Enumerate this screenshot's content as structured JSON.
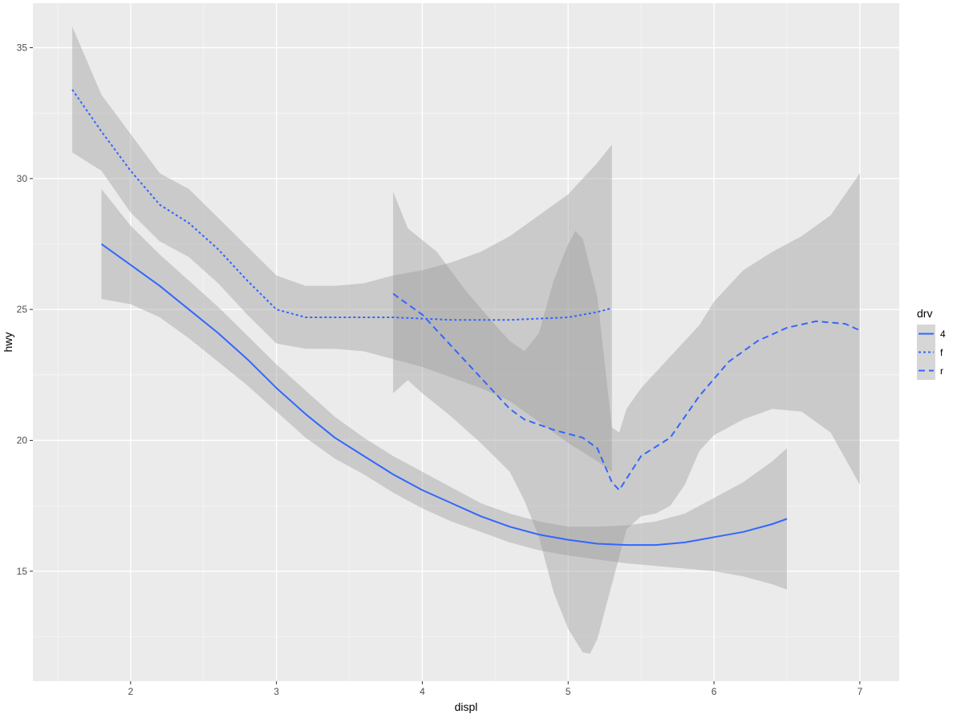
{
  "chart_data": {
    "type": "line",
    "xlabel": "displ",
    "ylabel": "hwy",
    "xlim": [
      1.33,
      7.27
    ],
    "ylim": [
      10.8,
      36.7
    ],
    "x_ticks": [
      2,
      3,
      4,
      5,
      6,
      7
    ],
    "x_tick_labels": [
      "2",
      "3",
      "4",
      "5",
      "6",
      "7"
    ],
    "y_ticks": [
      15,
      20,
      25,
      30,
      35
    ],
    "y_tick_labels": [
      "15",
      "20",
      "25",
      "30",
      "35"
    ],
    "grid": true,
    "legend": {
      "title": "drv",
      "position": "right"
    },
    "colors": {
      "panel": "#ebebeb",
      "grid_major": "#ffffff",
      "grid_minor": "#f5f5f5",
      "ribbon": "#999999",
      "line": "#3366ff"
    },
    "series": [
      {
        "name": "4",
        "linetype": "solid",
        "points": [
          [
            1.8,
            27.5
          ],
          [
            2.0,
            26.7
          ],
          [
            2.2,
            25.9
          ],
          [
            2.4,
            25.0
          ],
          [
            2.6,
            24.1
          ],
          [
            2.8,
            23.1
          ],
          [
            3.0,
            22.0
          ],
          [
            3.2,
            21.0
          ],
          [
            3.4,
            20.1
          ],
          [
            3.6,
            19.4
          ],
          [
            3.8,
            18.7
          ],
          [
            4.0,
            18.1
          ],
          [
            4.2,
            17.6
          ],
          [
            4.4,
            17.1
          ],
          [
            4.6,
            16.7
          ],
          [
            4.8,
            16.4
          ],
          [
            5.0,
            16.2
          ],
          [
            5.2,
            16.05
          ],
          [
            5.4,
            16.0
          ],
          [
            5.6,
            16.0
          ],
          [
            5.8,
            16.1
          ],
          [
            6.0,
            16.3
          ],
          [
            6.2,
            16.5
          ],
          [
            6.4,
            16.8
          ],
          [
            6.5,
            17.0
          ]
        ],
        "upper": [
          [
            1.8,
            29.6
          ],
          [
            2.0,
            28.2
          ],
          [
            2.2,
            27.1
          ],
          [
            2.4,
            26.1
          ],
          [
            2.6,
            25.1
          ],
          [
            2.8,
            24.0
          ],
          [
            3.0,
            22.9
          ],
          [
            3.2,
            21.9
          ],
          [
            3.4,
            20.9
          ],
          [
            3.6,
            20.1
          ],
          [
            3.8,
            19.4
          ],
          [
            4.0,
            18.8
          ],
          [
            4.2,
            18.2
          ],
          [
            4.4,
            17.6
          ],
          [
            4.6,
            17.2
          ],
          [
            4.8,
            16.9
          ],
          [
            5.0,
            16.7
          ],
          [
            5.2,
            16.7
          ],
          [
            5.4,
            16.75
          ],
          [
            5.6,
            16.9
          ],
          [
            5.8,
            17.2
          ],
          [
            6.0,
            17.8
          ],
          [
            6.2,
            18.4
          ],
          [
            6.4,
            19.2
          ],
          [
            6.5,
            19.7
          ]
        ],
        "lower": [
          [
            1.8,
            25.4
          ],
          [
            2.0,
            25.2
          ],
          [
            2.2,
            24.7
          ],
          [
            2.4,
            23.9
          ],
          [
            2.6,
            23.0
          ],
          [
            2.8,
            22.1
          ],
          [
            3.0,
            21.1
          ],
          [
            3.2,
            20.1
          ],
          [
            3.4,
            19.3
          ],
          [
            3.6,
            18.7
          ],
          [
            3.8,
            18.0
          ],
          [
            4.0,
            17.4
          ],
          [
            4.2,
            16.9
          ],
          [
            4.4,
            16.5
          ],
          [
            4.6,
            16.1
          ],
          [
            4.8,
            15.8
          ],
          [
            5.0,
            15.6
          ],
          [
            5.2,
            15.45
          ],
          [
            5.4,
            15.3
          ],
          [
            5.6,
            15.2
          ],
          [
            5.8,
            15.1
          ],
          [
            6.0,
            15.0
          ],
          [
            6.2,
            14.8
          ],
          [
            6.4,
            14.5
          ],
          [
            6.5,
            14.3
          ]
        ]
      },
      {
        "name": "f",
        "linetype": "dotted",
        "points": [
          [
            1.6,
            33.4
          ],
          [
            1.8,
            31.8
          ],
          [
            2.0,
            30.3
          ],
          [
            2.2,
            29.0
          ],
          [
            2.4,
            28.3
          ],
          [
            2.6,
            27.3
          ],
          [
            2.8,
            26.1
          ],
          [
            3.0,
            25.0
          ],
          [
            3.2,
            24.7
          ],
          [
            3.4,
            24.7
          ],
          [
            3.6,
            24.7
          ],
          [
            3.8,
            24.7
          ],
          [
            4.0,
            24.65
          ],
          [
            4.2,
            24.6
          ],
          [
            4.4,
            24.6
          ],
          [
            4.6,
            24.6
          ],
          [
            4.8,
            24.65
          ],
          [
            5.0,
            24.7
          ],
          [
            5.2,
            24.9
          ],
          [
            5.3,
            25.05
          ]
        ],
        "upper": [
          [
            1.6,
            35.8
          ],
          [
            1.8,
            33.2
          ],
          [
            2.0,
            31.7
          ],
          [
            2.2,
            30.2
          ],
          [
            2.4,
            29.6
          ],
          [
            2.6,
            28.5
          ],
          [
            2.8,
            27.4
          ],
          [
            3.0,
            26.3
          ],
          [
            3.2,
            25.9
          ],
          [
            3.4,
            25.9
          ],
          [
            3.6,
            26.0
          ],
          [
            3.8,
            26.3
          ],
          [
            4.0,
            26.5
          ],
          [
            4.2,
            26.8
          ],
          [
            4.4,
            27.2
          ],
          [
            4.6,
            27.8
          ],
          [
            4.8,
            28.6
          ],
          [
            5.0,
            29.4
          ],
          [
            5.2,
            30.6
          ],
          [
            5.3,
            31.3
          ]
        ],
        "lower": [
          [
            1.6,
            31.0
          ],
          [
            1.8,
            30.3
          ],
          [
            2.0,
            28.7
          ],
          [
            2.2,
            27.6
          ],
          [
            2.4,
            27.0
          ],
          [
            2.6,
            26.0
          ],
          [
            2.8,
            24.8
          ],
          [
            3.0,
            23.7
          ],
          [
            3.2,
            23.5
          ],
          [
            3.4,
            23.5
          ],
          [
            3.6,
            23.4
          ],
          [
            3.8,
            23.1
          ],
          [
            4.0,
            22.8
          ],
          [
            4.2,
            22.4
          ],
          [
            4.4,
            22.0
          ],
          [
            4.6,
            21.5
          ],
          [
            4.8,
            20.7
          ],
          [
            5.0,
            19.9
          ],
          [
            5.2,
            19.2
          ],
          [
            5.3,
            18.8
          ]
        ]
      },
      {
        "name": "r",
        "linetype": "dashed",
        "points": [
          [
            3.8,
            25.6
          ],
          [
            4.0,
            24.8
          ],
          [
            4.2,
            23.6
          ],
          [
            4.4,
            22.4
          ],
          [
            4.6,
            21.2
          ],
          [
            4.7,
            20.8
          ],
          [
            4.9,
            20.4
          ],
          [
            5.1,
            20.1
          ],
          [
            5.2,
            19.7
          ],
          [
            5.3,
            18.4
          ],
          [
            5.35,
            18.1
          ],
          [
            5.5,
            19.4
          ],
          [
            5.7,
            20.1
          ],
          [
            5.9,
            21.7
          ],
          [
            6.1,
            23.0
          ],
          [
            6.3,
            23.8
          ],
          [
            6.5,
            24.3
          ],
          [
            6.7,
            24.55
          ],
          [
            6.9,
            24.45
          ],
          [
            7.0,
            24.2
          ]
        ],
        "upper": [
          [
            3.8,
            29.5
          ],
          [
            3.9,
            28.1
          ],
          [
            4.1,
            27.2
          ],
          [
            4.3,
            25.7
          ],
          [
            4.5,
            24.4
          ],
          [
            4.6,
            23.8
          ],
          [
            4.7,
            23.4
          ],
          [
            4.8,
            24.1
          ],
          [
            4.9,
            26.1
          ],
          [
            5.0,
            27.5
          ],
          [
            5.05,
            28.0
          ],
          [
            5.1,
            27.7
          ],
          [
            5.2,
            25.5
          ],
          [
            5.25,
            23.0
          ],
          [
            5.3,
            20.5
          ],
          [
            5.35,
            20.3
          ],
          [
            5.4,
            21.2
          ],
          [
            5.5,
            22.0
          ],
          [
            5.7,
            23.2
          ],
          [
            5.9,
            24.4
          ],
          [
            6.0,
            25.3
          ],
          [
            6.2,
            26.5
          ],
          [
            6.4,
            27.2
          ],
          [
            6.6,
            27.8
          ],
          [
            6.8,
            28.6
          ],
          [
            7.0,
            30.2
          ]
        ],
        "lower": [
          [
            3.8,
            21.8
          ],
          [
            3.9,
            22.3
          ],
          [
            4.0,
            21.8
          ],
          [
            4.2,
            20.9
          ],
          [
            4.4,
            19.9
          ],
          [
            4.6,
            18.8
          ],
          [
            4.7,
            17.7
          ],
          [
            4.8,
            16.3
          ],
          [
            4.9,
            14.2
          ],
          [
            5.0,
            12.8
          ],
          [
            5.1,
            11.9
          ],
          [
            5.15,
            11.85
          ],
          [
            5.2,
            12.4
          ],
          [
            5.3,
            14.5
          ],
          [
            5.4,
            16.6
          ],
          [
            5.5,
            17.1
          ],
          [
            5.6,
            17.2
          ],
          [
            5.7,
            17.5
          ],
          [
            5.8,
            18.3
          ],
          [
            5.9,
            19.6
          ],
          [
            6.0,
            20.2
          ],
          [
            6.2,
            20.8
          ],
          [
            6.4,
            21.2
          ],
          [
            6.6,
            21.1
          ],
          [
            6.8,
            20.3
          ],
          [
            7.0,
            18.3
          ]
        ]
      }
    ]
  }
}
